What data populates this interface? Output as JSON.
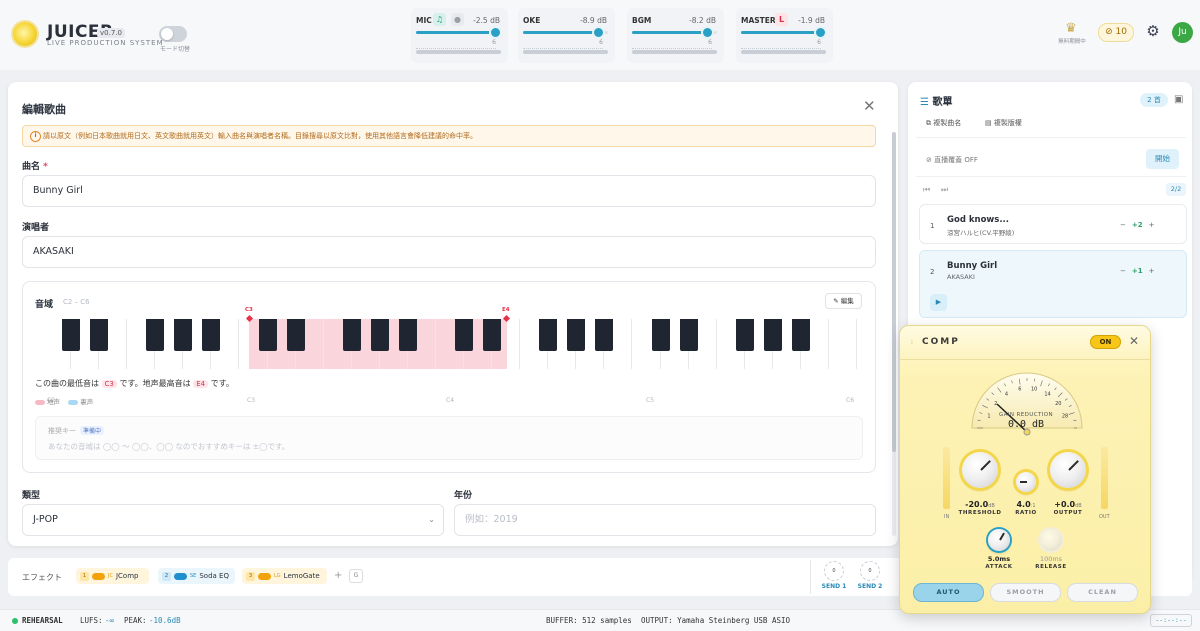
{
  "app": {
    "name": "JUICER",
    "version": "v0.7.0",
    "subtitle": "LIVE PRODUCTION SYSTEM",
    "mode_label": "モード切替"
  },
  "channels": [
    {
      "name": "MIC",
      "db": "-2.5 dB",
      "level": 0.93,
      "scale": "6"
    },
    {
      "name": "OKE",
      "db": "-8.9 dB",
      "level": 0.88,
      "scale": "6"
    },
    {
      "name": "BGM",
      "db": "-8.2 dB",
      "level": 0.88,
      "scale": "6"
    },
    {
      "name": "MASTER",
      "badge": "L",
      "db": "-1.9 dB",
      "level": 0.93,
      "scale": "6"
    }
  ],
  "header": {
    "crown_label": "無料期間中",
    "coins": "10",
    "crown_icon": "crown-icon",
    "gear_icon": "gear-icon",
    "avatar": "Ju"
  },
  "modal": {
    "title": "編輯歌曲",
    "warning": "請以原文（例如日本歌曲就用日文、英文歌曲就用英文）輸入曲名與演唱者名稱。目錄搜尋以原文比對，使用其他語言會降低建議的命中率。",
    "song_label": "曲名",
    "song_value": "Bunny Girl",
    "artist_label": "演唱者",
    "artist_value": "AKASAKI",
    "range": {
      "title": "音域",
      "sub": "C2 – C6",
      "edit": "編集",
      "low": "C3",
      "high": "E4",
      "octaves": [
        "C2",
        "C3",
        "C4",
        "C5",
        "C6"
      ],
      "info_pre": "この曲の最低音は",
      "info_mid": "です。地声最高音は",
      "info_post": "です。",
      "legend_chest": "地声",
      "legend_head": "裏声",
      "suggest_label": "推奨キー",
      "suggest_tag": "準備中",
      "suggest_text": "あなたの音域は ◯◯ 〜 ◯◯、◯◯ なのでおすすめキーは ±◯です。"
    },
    "genre_label": "類型",
    "genre_value": "J-POP",
    "year_label": "年份",
    "year_placeholder": "例如：2019"
  },
  "setlist": {
    "title": "歌單",
    "count": "2 首",
    "copy_title": "複製曲名",
    "copy_list": "複製版權",
    "broadcast_label": "直播覆蓋 OFF",
    "start": "開始",
    "page": "2/2",
    "songs": [
      {
        "num": "1",
        "title": "God knows...",
        "artist": "涼宮ハルヒ(CV.平野綾)",
        "key": "+2"
      },
      {
        "num": "2",
        "title": "Bunny Girl",
        "artist": "AKASAKI",
        "key": "+1"
      }
    ]
  },
  "effects": {
    "label": "エフェクト",
    "chips": [
      {
        "num": "1",
        "abbr": "JC",
        "name": "JComp",
        "color": "#f2a20b"
      },
      {
        "num": "2",
        "abbr": "SE",
        "name": "Soda EQ",
        "color": "#1f8fd0"
      },
      {
        "num": "3",
        "abbr": "LG",
        "name": "LemoGate",
        "color": "#f2a20b"
      }
    ],
    "g_label": "G",
    "sends": [
      {
        "label": "SEND 1",
        "value": "0"
      },
      {
        "label": "SEND 2",
        "value": "0"
      }
    ]
  },
  "comp": {
    "title": "COMP",
    "on_label": "ON",
    "gauge_label": "GAIN REDUCTION",
    "gauge_value": "0.0 dB",
    "gauge_ticks": [
      "1",
      "2",
      "4",
      "6",
      "10",
      "14",
      "20",
      "28"
    ],
    "in_label": "IN",
    "out_label": "OUT",
    "threshold": {
      "value": "-20.0",
      "unit": "dB",
      "label": "THRESHOLD"
    },
    "ratio": {
      "value": "4.0",
      "unit": ":1",
      "label": "RATIO"
    },
    "output": {
      "value": "+0.0",
      "unit": "dB",
      "label": "OUTPUT"
    },
    "attack": {
      "value": "5.0ms",
      "label": "ATTACK"
    },
    "release": {
      "value": "100ms",
      "label": "RELEASE"
    },
    "buttons": [
      {
        "label": "AUTO",
        "active": true
      },
      {
        "label": "SMOOTH",
        "active": false
      },
      {
        "label": "CLEAN",
        "active": false
      }
    ]
  },
  "status": {
    "mode": "REHEARSAL",
    "lufs_label": "LUFS:",
    "lufs": "-∞",
    "peak_label": "PEAK:",
    "peak": "-10.6dB",
    "buffer": "BUFFER: 512 samples",
    "output": "OUTPUT: Yamaha Steinberg USB ASIO",
    "timecode": "--:--:--"
  }
}
